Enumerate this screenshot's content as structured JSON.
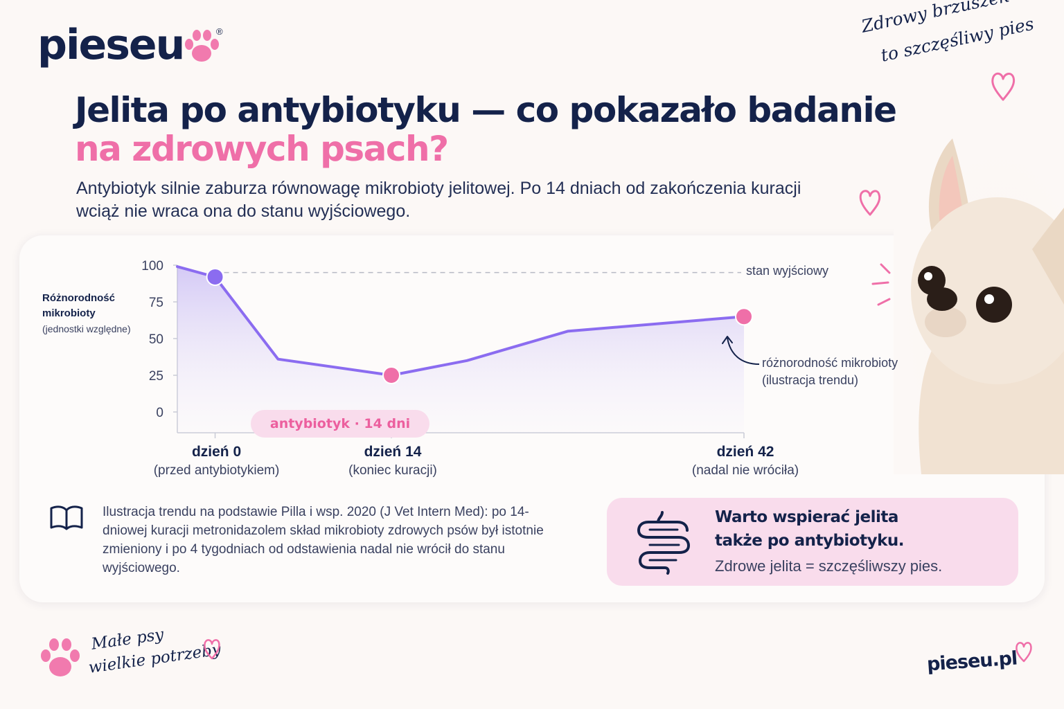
{
  "brand": {
    "logo": "pieseu",
    "registered": "®",
    "url": "pieseu.pl",
    "accent": "#ef6fa8",
    "navy": "#14224a",
    "line": "#8b6cf0"
  },
  "tagline": {
    "line1": "Zdrowy brzuszek",
    "line2": "to szczęśliwy pies"
  },
  "header": {
    "title_line1": "Jelita po antybiotyku — co pokazało badanie",
    "title_line2": "na zdrowych psach?",
    "subtitle": "Antybiotyk silnie zaburza równowagę mikrobioty jelitowej. Po 14 dniach od zakończenia kuracji wciąż nie wraca ona do stanu wyjściowego."
  },
  "chart_data": {
    "type": "line",
    "ylabel_line1": "Różnorodność",
    "ylabel_line2": "mikrobioty",
    "ylabel_line3": "(jednostki względne)",
    "ylim": [
      0,
      100
    ],
    "yticks": [
      0,
      25,
      50,
      75,
      100
    ],
    "xlim": [
      -3,
      42
    ],
    "series": [
      {
        "x": [
          -3,
          0,
          5,
          14,
          20,
          28,
          42
        ],
        "y": [
          99,
          92,
          36,
          25,
          35,
          55,
          65
        ]
      }
    ],
    "markers": [
      {
        "x": 0,
        "y": 92,
        "color": "#8b6cf0"
      },
      {
        "x": 14,
        "y": 25,
        "color": "#ef6fa8"
      },
      {
        "x": 42,
        "y": 65,
        "color": "#ef6fa8"
      }
    ],
    "baseline": {
      "y": 95,
      "label": "stan wyjściowy"
    },
    "annotation": {
      "line1": "różnorodność mikrobioty",
      "line2": "(ilustracja trendu)"
    },
    "antibiotic_label": "antybiotyk · 14 dni",
    "xticks": [
      {
        "x": 0,
        "label": "dzień 0",
        "sub": "(przed antybiotykiem)"
      },
      {
        "x": 14,
        "label": "dzień 14",
        "sub": "(koniec kuracji)"
      },
      {
        "x": 42,
        "label": "dzień 42",
        "sub": "(nadal nie wróciła)"
      }
    ],
    "grid": false
  },
  "source_note": "Ilustracja trendu na podstawie Pilla i wsp. 2020 (J Vet Intern Med): po 14-dniowej kuracji metronidazolem skład mikrobioty zdrowych psów był istotnie zmieniony i po 4 tygodniach od odstawienia nadal nie wrócił do stanu wyjściowego.",
  "cta": {
    "line1": "Warto wspierać jelita",
    "line2": "także po antybiotyku.",
    "line3": "Zdrowe jelita = szczęśliwszy pies."
  },
  "footer": {
    "line1": "Małe psy",
    "line2": "wielkie potrzeby"
  },
  "icons": [
    "paw-icon",
    "heart-icon",
    "book-icon",
    "intestine-icon",
    "arrow-icon",
    "chihuahua-photo"
  ]
}
